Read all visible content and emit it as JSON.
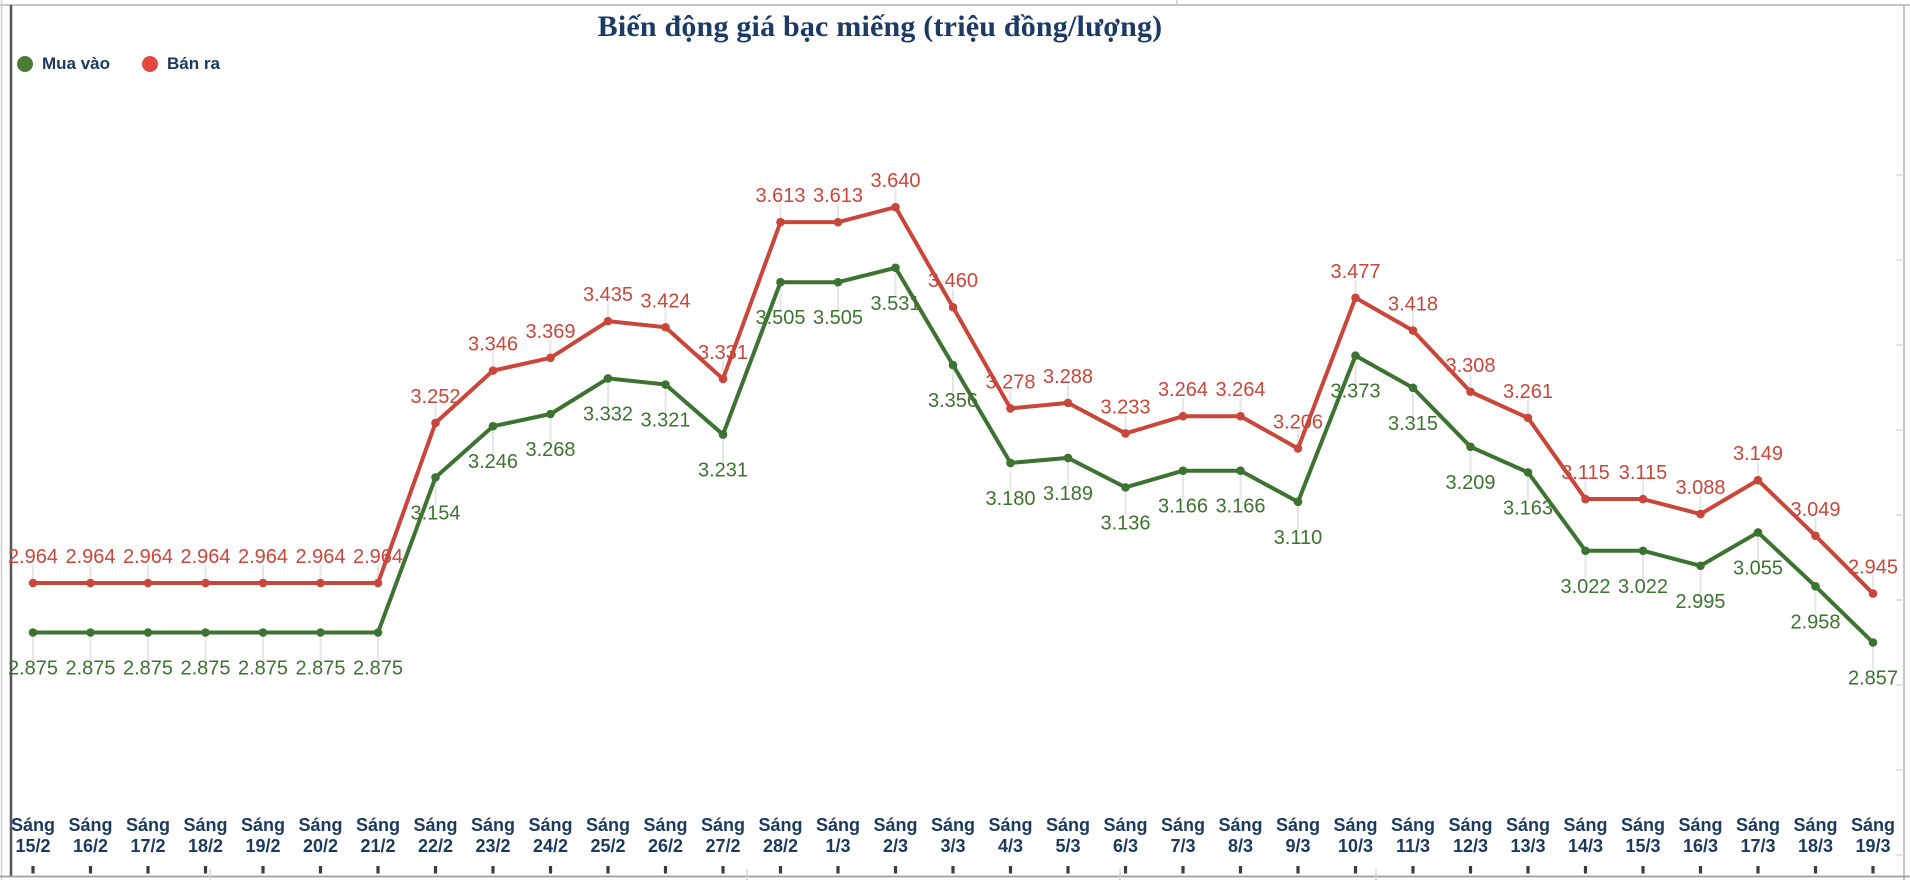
{
  "title": "Biến động giá bạc miếng (triệu đồng/lượng)",
  "legend": {
    "items": [
      {
        "label": "Mua vào",
        "color": "#4a7d33"
      },
      {
        "label": "Bán ra",
        "color": "#e2483d"
      }
    ]
  },
  "chart_data": {
    "type": "line",
    "title": "Biến động giá bạc miếng (triệu đồng/lượng)",
    "x_tick_prefix": "Sáng",
    "categories": [
      "15/2",
      "16/2",
      "17/2",
      "18/2",
      "19/2",
      "20/2",
      "21/2",
      "22/2",
      "23/2",
      "24/2",
      "25/2",
      "26/2",
      "27/2",
      "28/2",
      "1/3",
      "2/3",
      "3/3",
      "4/3",
      "5/3",
      "6/3",
      "7/3",
      "8/3",
      "9/3",
      "10/3",
      "11/3",
      "12/3",
      "13/3",
      "14/3",
      "15/3",
      "16/3",
      "17/3",
      "18/3",
      "19/3"
    ],
    "series": [
      {
        "id": "mua-vao",
        "name": "Mua vào",
        "color": "#3d7330",
        "label_side": "below",
        "values": [
          2.875,
          2.875,
          2.875,
          2.875,
          2.875,
          2.875,
          2.875,
          3.154,
          3.246,
          3.268,
          3.332,
          3.321,
          3.231,
          3.505,
          3.505,
          3.531,
          3.356,
          3.18,
          3.189,
          3.136,
          3.166,
          3.166,
          3.11,
          3.373,
          3.315,
          3.209,
          3.163,
          3.022,
          3.022,
          2.995,
          3.055,
          2.958,
          2.857
        ]
      },
      {
        "id": "ban-ra",
        "name": "Bán ra",
        "color": "#c9463a",
        "label_side": "above",
        "values": [
          2.964,
          2.964,
          2.964,
          2.964,
          2.964,
          2.964,
          2.964,
          3.252,
          3.346,
          3.369,
          3.435,
          3.424,
          3.331,
          3.613,
          3.613,
          3.64,
          3.46,
          3.278,
          3.288,
          3.233,
          3.264,
          3.264,
          3.206,
          3.477,
          3.418,
          3.308,
          3.261,
          3.115,
          3.115,
          3.088,
          3.149,
          3.049,
          2.945
        ]
      }
    ],
    "ylim": [
      2.75,
      3.75
    ],
    "xlabel": "",
    "ylabel": "",
    "grid": false,
    "legend_position": "top-left",
    "decimal_places": 3,
    "data_labels": true
  },
  "colors": {
    "title_text": "#1b3a66",
    "axis_label_text": "#1c3a60",
    "buy_line": "#3d7330",
    "sell_line": "#c9463a",
    "frame_line": "#b3b3b3",
    "axis_line": "#555555",
    "tick_mark": "#3d3d3d",
    "leader_line": "#e6e6e6",
    "background": "#ffffff"
  }
}
